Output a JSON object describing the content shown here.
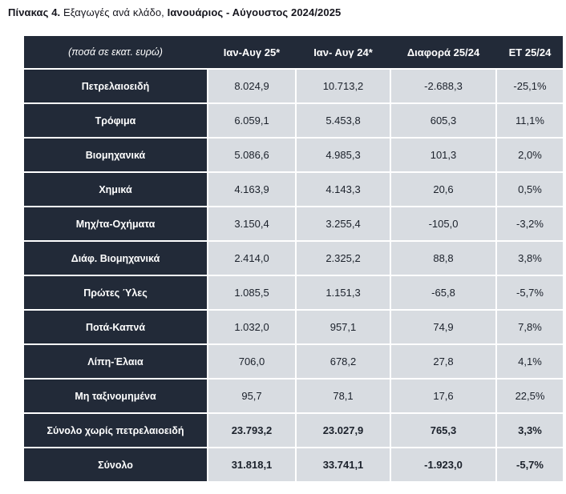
{
  "title": {
    "prefix": "Πίνακας 4.",
    "middle": " Εξαγωγές ανά κλάδο, ",
    "suffix": "Ιανουάριος - Αύγουστος 2024/2025"
  },
  "colors": {
    "header_bg": "#222A38",
    "cell_bg": "#D8DCE1",
    "text_on_dark": "#FFFFFF",
    "text_on_light": "#1B212B"
  },
  "table": {
    "unit_note": "(ποσά σε εκατ. ευρώ)",
    "columns": [
      "Ιαν-Αυγ 25*",
      "Ιαν- Αυγ 24*",
      "Διαφορά 25/24",
      "ΕΤ 25/24"
    ],
    "rows": [
      {
        "label": "Πετρελαιοειδή",
        "values": [
          "8.024,9",
          "10.713,2",
          "-2.688,3",
          "-25,1%"
        ],
        "bold": false
      },
      {
        "label": "Τρόφιμα",
        "values": [
          "6.059,1",
          "5.453,8",
          "605,3",
          "11,1%"
        ],
        "bold": false
      },
      {
        "label": "Βιομηχανικά",
        "values": [
          "5.086,6",
          "4.985,3",
          "101,3",
          "2,0%"
        ],
        "bold": false
      },
      {
        "label": "Χημικά",
        "values": [
          "4.163,9",
          "4.143,3",
          "20,6",
          "0,5%"
        ],
        "bold": false
      },
      {
        "label": "Μηχ/τα-Οχήματα",
        "values": [
          "3.150,4",
          "3.255,4",
          "-105,0",
          "-3,2%"
        ],
        "bold": false
      },
      {
        "label": "Διάφ. Βιομηχανικά",
        "values": [
          "2.414,0",
          "2.325,2",
          "88,8",
          "3,8%"
        ],
        "bold": false
      },
      {
        "label": "Πρώτες Ύλες",
        "values": [
          "1.085,5",
          "1.151,3",
          "-65,8",
          "-5,7%"
        ],
        "bold": false
      },
      {
        "label": "Ποτά-Καπνά",
        "values": [
          "1.032,0",
          "957,1",
          "74,9",
          "7,8%"
        ],
        "bold": false
      },
      {
        "label": "Λίπη-Έλαια",
        "values": [
          "706,0",
          "678,2",
          "27,8",
          "4,1%"
        ],
        "bold": false
      },
      {
        "label": "Μη ταξινομημένα",
        "values": [
          "95,7",
          "78,1",
          "17,6",
          "22,5%"
        ],
        "bold": false
      },
      {
        "label": "Σύνολο χωρίς πετρελαιοειδή",
        "values": [
          "23.793,2",
          "23.027,9",
          "765,3",
          "3,3%"
        ],
        "bold": true
      },
      {
        "label": "Σύνολο",
        "values": [
          "31.818,1",
          "33.741,1",
          "-1.923,0",
          "-5,7%"
        ],
        "bold": true
      }
    ]
  },
  "chart_data": {
    "type": "table",
    "title": "Πίνακας 4. Εξαγωγές ανά κλάδο, Ιανουάριος - Αύγουστος 2024/2025",
    "unit": "ποσά σε εκατ. ευρώ",
    "columns": [
      "Ιαν-Αυγ 25*",
      "Ιαν- Αυγ 24*",
      "Διαφορά 25/24",
      "ΕΤ 25/24"
    ],
    "categories": [
      "Πετρελαιοειδή",
      "Τρόφιμα",
      "Βιομηχανικά",
      "Χημικά",
      "Μηχ/τα-Οχήματα",
      "Διάφ. Βιομηχανικά",
      "Πρώτες Ύλες",
      "Ποτά-Καπνά",
      "Λίπη-Έλαια",
      "Μη ταξινομημένα",
      "Σύνολο χωρίς πετρελαιοειδή",
      "Σύνολο"
    ],
    "series": [
      {
        "name": "Ιαν-Αυγ 25*",
        "values": [
          8024.9,
          6059.1,
          5086.6,
          4163.9,
          3150.4,
          2414.0,
          1085.5,
          1032.0,
          706.0,
          95.7,
          23793.2,
          31818.1
        ]
      },
      {
        "name": "Ιαν- Αυγ 24*",
        "values": [
          10713.2,
          5453.8,
          4985.3,
          4143.3,
          3255.4,
          2325.2,
          1151.3,
          957.1,
          678.2,
          78.1,
          23027.9,
          33741.1
        ]
      },
      {
        "name": "Διαφορά 25/24",
        "values": [
          -2688.3,
          605.3,
          101.3,
          20.6,
          -105.0,
          88.8,
          -65.8,
          74.9,
          27.8,
          17.6,
          765.3,
          -1923.0
        ]
      },
      {
        "name": "ΕΤ 25/24 (%)",
        "values": [
          -25.1,
          11.1,
          2.0,
          0.5,
          -3.2,
          3.8,
          -5.7,
          7.8,
          4.1,
          22.5,
          3.3,
          -5.7
        ]
      }
    ]
  }
}
